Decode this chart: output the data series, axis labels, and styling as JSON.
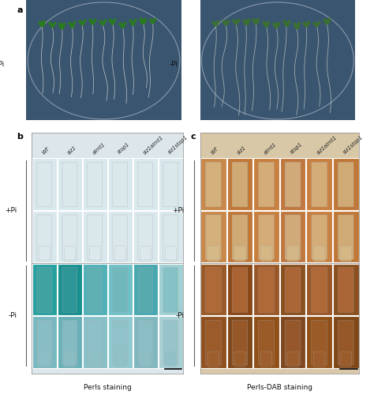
{
  "panel_a_label": "a",
  "panel_b_label": "b",
  "panel_c_label": "c",
  "genotypes": [
    "WT",
    "siz1",
    "almt1",
    "stop1",
    "siz1almt1",
    "siz1stop1"
  ],
  "panel_a_bg": "#3a5570",
  "panel_a_plate_edge": "#8899aa",
  "shoot_color_plus": "#2a7a20",
  "shoot_color_minus": "#3a7030",
  "root_color_plus": "#c8d0cc",
  "root_color_minus": "#b8c4bc",
  "perls_bg": "#dce8ec",
  "perls_plus_bg": "#d0e0e8",
  "perls_minus_bg": "#c0d8e0",
  "perls_plus_root_light": "#b8ccd4",
  "perls_plus_root_dark": "#a8c0cc",
  "perls_minus_row3_colors": [
    "#28a0a0",
    "#189090",
    "#50b0b8",
    "#70c0c8",
    "#48a8b0",
    "#a0d0d4"
  ],
  "perls_minus_row4_colors": [
    "#78b8c0",
    "#68b0b8",
    "#88c0c8",
    "#90c8d0",
    "#80b8c0",
    "#a8d0d4"
  ],
  "dab_bg": "#e0d0b8",
  "dab_plus_colors": [
    "#c8884a",
    "#c07838",
    "#c88040",
    "#c07840",
    "#c88040",
    "#c07838"
  ],
  "dab_minus_row3": [
    "#9a5a28",
    "#8a4818",
    "#9a5828",
    "#8a5020",
    "#9a5828",
    "#8a5020"
  ],
  "dab_minus_row4": [
    "#905020",
    "#804818",
    "#905018",
    "#804820",
    "#905018",
    "#804818"
  ],
  "perls_staining_label": "Perls staining",
  "perls_dab_label": "Perls-DAB staining",
  "pi_plus_label": "+Pi",
  "pi_minus_label": "-Pi",
  "label_fontsize": 6.5,
  "header_fontsize": 5.5,
  "panel_label_fontsize": 8,
  "figure_bg": "#ffffff",
  "n_seedlings_per_genotype": 2,
  "bracket_color": "#606060"
}
